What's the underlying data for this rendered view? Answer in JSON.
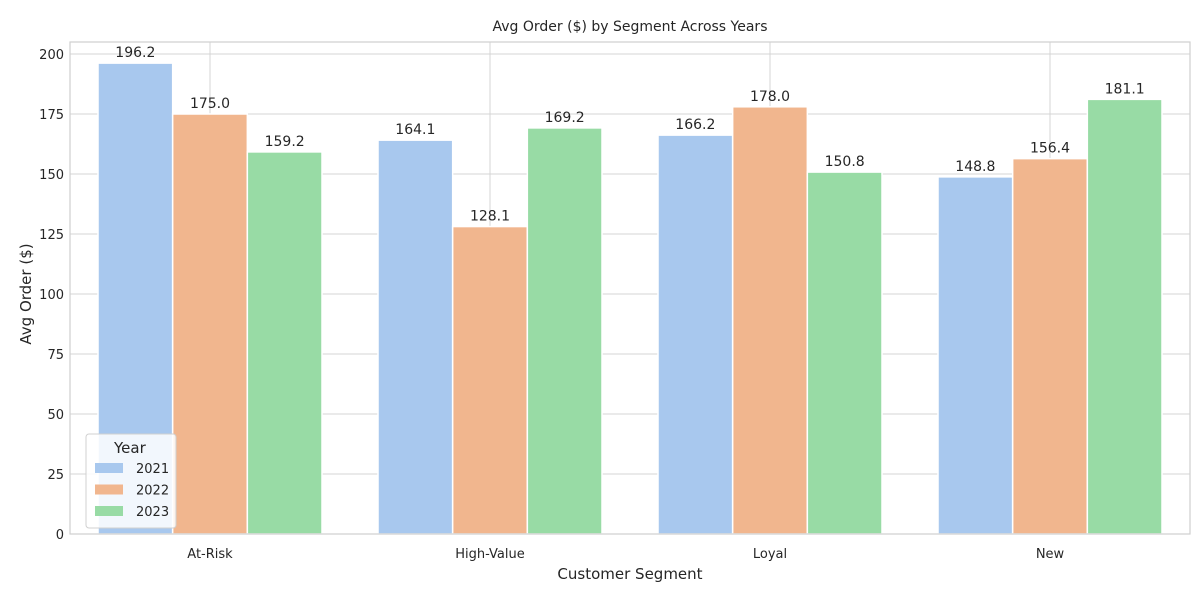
{
  "chart_data": {
    "type": "bar",
    "title": "Avg Order ($) by Segment Across Years",
    "xlabel": "Customer Segment",
    "ylabel": "Avg Order ($)",
    "categories": [
      "At-Risk",
      "High-Value",
      "Loyal",
      "New"
    ],
    "series": [
      {
        "name": "2021",
        "color": "#a8c8ee",
        "values": [
          196.2,
          164.1,
          166.2,
          148.8
        ]
      },
      {
        "name": "2022",
        "color": "#f1b68e",
        "values": [
          175.0,
          128.1,
          178.0,
          156.4
        ]
      },
      {
        "name": "2023",
        "color": "#98dba5",
        "values": [
          159.2,
          169.2,
          150.8,
          181.1
        ]
      }
    ],
    "ylim": [
      0,
      205
    ],
    "yticks": [
      0,
      25,
      50,
      75,
      100,
      125,
      150,
      175,
      200
    ],
    "grid": true,
    "legend": {
      "title": "Year",
      "position": "lower-left"
    }
  }
}
